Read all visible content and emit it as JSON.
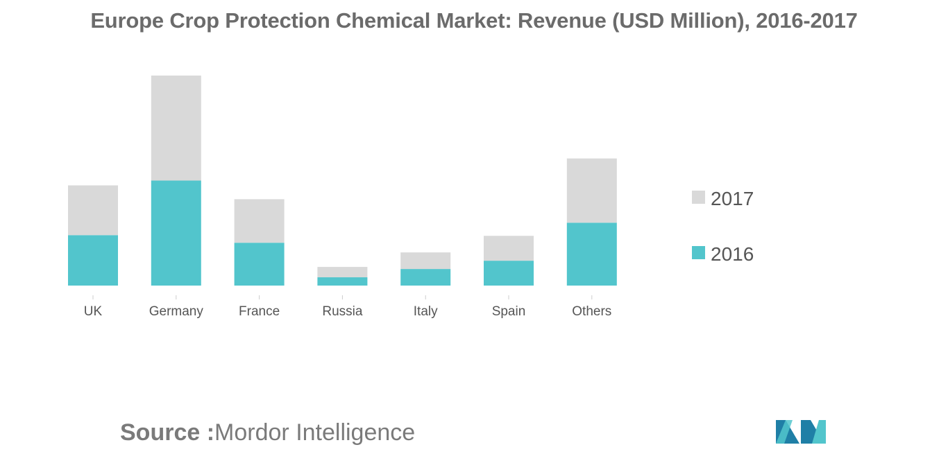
{
  "title": "Europe Crop Protection Chemical Market: Revenue (USD Million), 2016-2017",
  "source": {
    "label": "Source :",
    "value": "Mordor Intelligence"
  },
  "colors": {
    "2016": "#52c5cc",
    "2017": "#d9d9d9",
    "text": "#555555",
    "title": "#6b6b6b"
  },
  "logo": {
    "icon": "mordor-intelligence-logo",
    "colors": [
      "#1f7fa6",
      "#52c5cc"
    ]
  },
  "chart_data": {
    "type": "bar",
    "stacked": true,
    "title": "Europe Crop Protection Chemical Market: Revenue (USD Million), 2016-2017",
    "xlabel": "",
    "ylabel": "",
    "categories": [
      "UK",
      "Germany",
      "France",
      "Russia",
      "Italy",
      "Spain",
      "Others"
    ],
    "series": [
      {
        "name": "2016",
        "values": [
          73,
          152,
          62,
          12,
          24,
          36,
          91
        ]
      },
      {
        "name": "2017",
        "values": [
          72,
          152,
          63,
          15,
          24,
          36,
          93
        ]
      }
    ],
    "ylim": [
      0,
      305
    ],
    "grid": false,
    "y_axis_visible": false,
    "legend": {
      "position": "right",
      "order": [
        "2017",
        "2016"
      ]
    }
  }
}
